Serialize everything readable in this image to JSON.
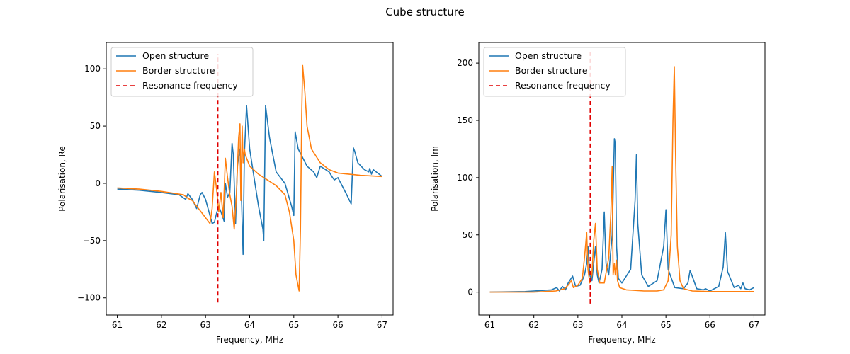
{
  "figure": {
    "title": "Cube structure"
  },
  "colors": {
    "open": "#1f77b4",
    "border": "#ff7f0e",
    "resonance": "#e00000"
  },
  "chart_data": [
    {
      "type": "line",
      "title": "",
      "xlabel": "Frequency, MHz",
      "ylabel": "Polarisation, Re",
      "xlim": [
        60.75,
        67.25
      ],
      "ylim": [
        -115,
        123
      ],
      "xticks": [
        61,
        62,
        63,
        64,
        65,
        66,
        67
      ],
      "yticks": [
        -100,
        -50,
        0,
        50,
        100
      ],
      "ytick_labels": [
        "−100",
        "−50",
        "0",
        "50",
        "100"
      ],
      "grid": false,
      "legend": {
        "placement": "top-left",
        "entries": [
          "Open structure",
          "Border structure",
          "Resonance frequency"
        ]
      },
      "resonance": {
        "name": "Resonance frequency",
        "x": 63.28,
        "y": [
          -104,
          113
        ]
      },
      "series": [
        {
          "name": "Open structure",
          "color": "#1f77b4",
          "x": [
            61.0,
            61.5,
            62.0,
            62.4,
            62.55,
            62.6,
            62.7,
            62.8,
            62.88,
            62.92,
            63.0,
            63.1,
            63.15,
            63.2,
            63.25,
            63.3,
            63.35,
            63.42,
            63.45,
            63.5,
            63.55,
            63.6,
            63.63,
            63.68,
            63.72,
            63.78,
            63.82,
            63.85,
            63.88,
            63.93,
            64.0,
            64.1,
            64.2,
            64.3,
            64.32,
            64.36,
            64.45,
            64.6,
            64.8,
            64.95,
            65.0,
            65.03,
            65.1,
            65.3,
            65.45,
            65.52,
            65.6,
            65.8,
            65.88,
            65.92,
            66.0,
            66.2,
            66.3,
            66.35,
            66.38,
            66.45,
            66.6,
            66.7,
            66.72,
            66.76,
            66.8,
            66.9,
            67.0
          ],
          "y": [
            -5,
            -6,
            -8,
            -10,
            -14,
            -9,
            -14,
            -22,
            -10,
            -8,
            -14,
            -28,
            -35,
            -34,
            -26,
            -20,
            -25,
            -33,
            0,
            -12,
            -8,
            35,
            25,
            -35,
            15,
            30,
            -20,
            -62,
            25,
            68,
            30,
            5,
            -20,
            -40,
            -50,
            68,
            40,
            10,
            0,
            -20,
            -28,
            45,
            30,
            15,
            10,
            5,
            15,
            10,
            5,
            3,
            5,
            -10,
            -18,
            31,
            28,
            18,
            12,
            10,
            13,
            8,
            12,
            9,
            6
          ]
        },
        {
          "name": "Border structure",
          "color": "#ff7f0e",
          "x": [
            61.0,
            61.5,
            62.0,
            62.5,
            62.6,
            62.7,
            62.8,
            62.9,
            63.0,
            63.1,
            63.15,
            63.2,
            63.25,
            63.3,
            63.35,
            63.4,
            63.45,
            63.5,
            63.55,
            63.6,
            63.65,
            63.7,
            63.75,
            63.78,
            63.8,
            63.83,
            63.85,
            63.88,
            63.9,
            64.0,
            64.2,
            64.4,
            64.6,
            64.8,
            64.9,
            65.0,
            65.05,
            65.12,
            65.15,
            65.18,
            65.2,
            65.25,
            65.3,
            65.4,
            65.6,
            65.8,
            66.0,
            66.5,
            67.0
          ],
          "y": [
            -4,
            -5,
            -7,
            -10,
            -13,
            -15,
            -20,
            -25,
            -30,
            -35,
            -22,
            10,
            -5,
            -25,
            -8,
            -30,
            22,
            5,
            -10,
            -20,
            -40,
            -10,
            40,
            52,
            -15,
            50,
            18,
            30,
            25,
            15,
            8,
            3,
            -2,
            -10,
            -25,
            -50,
            -80,
            -94,
            -40,
            60,
            103,
            80,
            50,
            30,
            18,
            12,
            9,
            7,
            6
          ]
        }
      ]
    },
    {
      "type": "line",
      "title": "",
      "xlabel": "Frequency, MHz",
      "ylabel": "Polarisation, Im",
      "xlim": [
        60.75,
        67.25
      ],
      "ylim": [
        -20,
        218
      ],
      "xticks": [
        61,
        62,
        63,
        64,
        65,
        66,
        67
      ],
      "yticks": [
        0,
        50,
        100,
        150,
        200
      ],
      "ytick_labels": [
        "0",
        "50",
        "100",
        "150",
        "200"
      ],
      "grid": false,
      "legend": {
        "placement": "top-left",
        "entries": [
          "Open structure",
          "Border structure",
          "Resonance frequency"
        ]
      },
      "resonance": {
        "name": "Resonance frequency",
        "x": 63.28,
        "y": [
          -10,
          210
        ]
      },
      "series": [
        {
          "name": "Open structure",
          "color": "#1f77b4",
          "x": [
            61.0,
            61.8,
            62.0,
            62.2,
            62.4,
            62.52,
            62.58,
            62.65,
            62.72,
            62.78,
            62.88,
            62.95,
            63.05,
            63.15,
            63.2,
            63.23,
            63.27,
            63.32,
            63.36,
            63.4,
            63.44,
            63.48,
            63.55,
            63.6,
            63.64,
            63.7,
            63.78,
            63.83,
            63.85,
            63.88,
            63.92,
            64.0,
            64.2,
            64.3,
            64.33,
            64.36,
            64.45,
            64.6,
            64.8,
            64.95,
            65.0,
            65.05,
            65.2,
            65.4,
            65.5,
            65.55,
            65.7,
            65.85,
            65.9,
            66.0,
            66.2,
            66.3,
            66.35,
            66.4,
            66.55,
            66.65,
            66.7,
            66.75,
            66.8,
            66.9,
            67.0
          ],
          "y": [
            0,
            0.5,
            1,
            1.5,
            2,
            4,
            1,
            5,
            2,
            8,
            14,
            5,
            6,
            15,
            25,
            40,
            15,
            10,
            25,
            40,
            15,
            8,
            20,
            70,
            25,
            15,
            50,
            134,
            130,
            40,
            12,
            8,
            20,
            80,
            120,
            60,
            15,
            5,
            10,
            40,
            72,
            20,
            4,
            3,
            8,
            19,
            3,
            2,
            3,
            1,
            5,
            22,
            52,
            18,
            4,
            6,
            3,
            8,
            3,
            2,
            4
          ]
        },
        {
          "name": "Border structure",
          "color": "#ff7f0e",
          "x": [
            61.0,
            62.0,
            62.5,
            62.7,
            62.8,
            62.85,
            62.9,
            63.0,
            63.1,
            63.15,
            63.2,
            63.23,
            63.27,
            63.32,
            63.36,
            63.4,
            63.44,
            63.5,
            63.6,
            63.7,
            63.75,
            63.78,
            63.8,
            63.83,
            63.85,
            63.88,
            63.9,
            63.95,
            64.1,
            64.5,
            64.8,
            64.95,
            65.05,
            65.12,
            65.16,
            65.19,
            65.22,
            65.26,
            65.32,
            65.4,
            65.6,
            66.0,
            67.0
          ],
          "y": [
            0,
            0,
            1,
            3,
            7,
            10,
            4,
            6,
            12,
            30,
            52,
            20,
            8,
            15,
            45,
            60,
            20,
            8,
            8,
            30,
            70,
            110,
            15,
            25,
            15,
            28,
            10,
            4,
            2,
            1,
            1,
            2,
            10,
            50,
            150,
            197,
            120,
            40,
            10,
            3,
            1,
            0.5,
            0.5
          ]
        }
      ]
    }
  ]
}
